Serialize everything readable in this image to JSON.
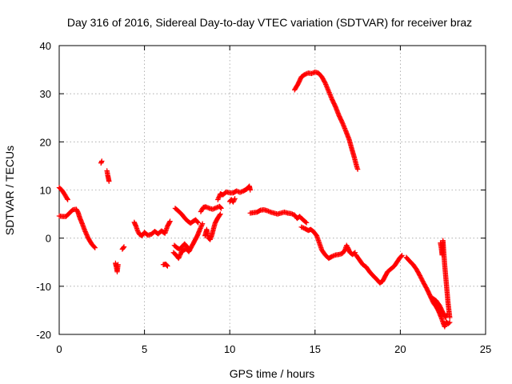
{
  "chart_data": {
    "type": "scatter",
    "title": "Day 316 of 2016, Sidereal Day-to-day VTEC variation (SDTVAR) for receiver braz",
    "xlabel": "GPS time / hours",
    "ylabel": "SDTVAR / TECUs",
    "xlim": [
      0,
      25
    ],
    "ylim": [
      -20,
      40
    ],
    "xticks": [
      0,
      5,
      10,
      15,
      20,
      25
    ],
    "yticks": [
      -20,
      -10,
      0,
      10,
      20,
      30,
      40
    ],
    "xtick_labels": [
      "0",
      "5",
      "10",
      "15",
      "20",
      "25"
    ],
    "ytick_labels": [
      "-20",
      "-10",
      "0",
      "10",
      "20",
      "30",
      "40"
    ],
    "grid": true,
    "marker": "+",
    "color": "#ff0000",
    "series": [
      {
        "name": "s1",
        "points": [
          [
            0.0,
            10.5
          ],
          [
            0.15,
            10.0
          ],
          [
            0.3,
            9.2
          ],
          [
            0.45,
            8.3
          ],
          [
            0.5,
            8.0
          ]
        ]
      },
      {
        "name": "s2",
        "points": [
          [
            0.0,
            4.6
          ],
          [
            0.2,
            4.5
          ],
          [
            0.4,
            4.5
          ],
          [
            0.6,
            5.2
          ],
          [
            0.8,
            5.9
          ],
          [
            1.0,
            6.0
          ],
          [
            1.1,
            5.4
          ],
          [
            1.2,
            4.3
          ],
          [
            1.35,
            3.0
          ],
          [
            1.5,
            1.6
          ],
          [
            1.7,
            0.0
          ],
          [
            1.9,
            -1.2
          ],
          [
            2.1,
            -2.0
          ]
        ]
      },
      {
        "name": "s3",
        "points": [
          [
            2.45,
            15.6
          ],
          [
            2.5,
            16.0
          ]
        ]
      },
      {
        "name": "s4",
        "points": [
          [
            2.8,
            14.0
          ],
          [
            2.85,
            13.0
          ],
          [
            2.9,
            12.2
          ],
          [
            2.92,
            11.8
          ]
        ]
      },
      {
        "name": "s5",
        "points": [
          [
            3.3,
            -5.2
          ],
          [
            3.35,
            -6.0
          ],
          [
            3.4,
            -7.0
          ],
          [
            3.45,
            -5.5
          ]
        ]
      },
      {
        "name": "s6",
        "points": [
          [
            3.7,
            -2.3
          ],
          [
            3.8,
            -1.8
          ]
        ]
      },
      {
        "name": "s7",
        "points": [
          [
            4.4,
            3.3
          ],
          [
            4.5,
            2.5
          ],
          [
            4.6,
            1.5
          ],
          [
            4.7,
            0.8
          ],
          [
            4.85,
            0.5
          ],
          [
            5.0,
            1.2
          ],
          [
            5.2,
            0.6
          ],
          [
            5.4,
            0.8
          ],
          [
            5.6,
            1.4
          ],
          [
            5.8,
            0.9
          ],
          [
            6.0,
            1.5
          ],
          [
            6.2,
            1.0
          ],
          [
            6.35,
            2.5
          ],
          [
            6.5,
            3.5
          ]
        ]
      },
      {
        "name": "s8",
        "points": [
          [
            6.1,
            -5.5
          ],
          [
            6.25,
            -5.4
          ],
          [
            6.35,
            -5.8
          ]
        ]
      },
      {
        "name": "s9",
        "points": [
          [
            6.7,
            -3.0
          ],
          [
            6.85,
            -3.5
          ],
          [
            7.0,
            -4.2
          ],
          [
            7.15,
            -3.0
          ],
          [
            7.3,
            -2.5
          ],
          [
            7.45,
            -2.2
          ],
          [
            7.6,
            -2.8
          ],
          [
            7.8,
            -1.5
          ],
          [
            7.95,
            -0.5
          ],
          [
            8.1,
            0.5
          ],
          [
            8.25,
            1.8
          ],
          [
            8.4,
            3.0
          ]
        ]
      },
      {
        "name": "s10",
        "points": [
          [
            6.75,
            -1.5
          ],
          [
            6.9,
            -2.0
          ],
          [
            7.05,
            -2.3
          ],
          [
            7.2,
            -1.8
          ],
          [
            7.35,
            -1.2
          ],
          [
            7.5,
            -1.8
          ],
          [
            7.65,
            -2.5
          ]
        ]
      },
      {
        "name": "s11",
        "points": [
          [
            6.8,
            6.2
          ],
          [
            7.0,
            5.6
          ],
          [
            7.2,
            4.9
          ],
          [
            7.4,
            4.0
          ],
          [
            7.55,
            3.5
          ],
          [
            7.7,
            3.1
          ],
          [
            7.85,
            3.5
          ],
          [
            8.0,
            3.8
          ],
          [
            8.15,
            3.2
          ]
        ]
      },
      {
        "name": "s12",
        "points": [
          [
            8.3,
            5.5
          ],
          [
            8.45,
            6.4
          ],
          [
            8.6,
            6.5
          ],
          [
            8.8,
            6.2
          ],
          [
            9.0,
            6.0
          ],
          [
            9.2,
            6.3
          ],
          [
            9.4,
            6.6
          ],
          [
            9.5,
            6.2
          ]
        ]
      },
      {
        "name": "s13",
        "points": [
          [
            8.55,
            0.5
          ],
          [
            8.65,
            1.8
          ],
          [
            8.75,
            0.0
          ],
          [
            8.85,
            -0.3
          ],
          [
            8.95,
            0.6
          ],
          [
            9.05,
            2.0
          ],
          [
            9.15,
            3.2
          ],
          [
            9.3,
            4.2
          ],
          [
            9.45,
            5.0
          ]
        ]
      },
      {
        "name": "s14",
        "points": [
          [
            9.3,
            8.0
          ],
          [
            9.45,
            9.2
          ],
          [
            9.6,
            9.0
          ],
          [
            9.8,
            9.6
          ],
          [
            10.0,
            9.4
          ],
          [
            10.2,
            9.4
          ],
          [
            10.4,
            9.8
          ],
          [
            10.6,
            9.5
          ],
          [
            10.8,
            9.8
          ],
          [
            11.0,
            10.2
          ],
          [
            11.15,
            10.8
          ],
          [
            11.2,
            10.0
          ]
        ]
      },
      {
        "name": "s15",
        "points": [
          [
            10.0,
            7.6
          ],
          [
            10.1,
            8.0
          ],
          [
            10.2,
            7.5
          ],
          [
            10.3,
            8.2
          ]
        ]
      },
      {
        "name": "s16",
        "points": [
          [
            11.2,
            5.2
          ],
          [
            11.4,
            5.3
          ],
          [
            11.6,
            5.4
          ],
          [
            11.8,
            5.8
          ],
          [
            12.0,
            5.9
          ],
          [
            12.2,
            5.7
          ],
          [
            12.4,
            5.4
          ],
          [
            12.6,
            5.2
          ],
          [
            12.8,
            5.0
          ],
          [
            13.0,
            5.2
          ],
          [
            13.2,
            5.4
          ],
          [
            13.4,
            5.2
          ],
          [
            13.6,
            5.1
          ],
          [
            13.8,
            4.8
          ],
          [
            13.95,
            4.1
          ],
          [
            14.1,
            4.5
          ],
          [
            14.3,
            3.8
          ],
          [
            14.5,
            3.2
          ]
        ]
      },
      {
        "name": "s17",
        "points": [
          [
            14.2,
            2.3
          ],
          [
            14.4,
            2.0
          ],
          [
            14.6,
            1.6
          ],
          [
            14.75,
            1.8
          ],
          [
            14.9,
            1.4
          ],
          [
            15.1,
            0.5
          ],
          [
            15.25,
            -1.0
          ],
          [
            15.4,
            -2.5
          ],
          [
            15.6,
            -3.5
          ],
          [
            15.8,
            -4.2
          ],
          [
            16.0,
            -3.8
          ],
          [
            16.2,
            -3.5
          ],
          [
            16.4,
            -3.4
          ],
          [
            16.6,
            -3.2
          ],
          [
            16.75,
            -2.5
          ],
          [
            16.85,
            -1.5
          ],
          [
            16.95,
            -2.2
          ],
          [
            17.05,
            -3.0
          ],
          [
            17.2,
            -3.4
          ],
          [
            17.35,
            -3.0
          ]
        ]
      },
      {
        "name": "s18",
        "points": [
          [
            17.4,
            -3.5
          ],
          [
            17.6,
            -4.5
          ],
          [
            17.8,
            -5.5
          ],
          [
            18.0,
            -6.0
          ],
          [
            18.2,
            -7.0
          ],
          [
            18.4,
            -7.8
          ],
          [
            18.6,
            -8.5
          ],
          [
            18.8,
            -9.3
          ],
          [
            18.95,
            -9.0
          ],
          [
            19.1,
            -8.0
          ],
          [
            19.25,
            -7.0
          ],
          [
            19.45,
            -6.4
          ],
          [
            19.65,
            -5.8
          ],
          [
            19.8,
            -5.0
          ],
          [
            19.95,
            -4.2
          ],
          [
            20.1,
            -3.6
          ]
        ]
      },
      {
        "name": "s19",
        "points": [
          [
            20.35,
            -4.0
          ],
          [
            20.55,
            -4.8
          ],
          [
            20.75,
            -5.5
          ],
          [
            20.95,
            -6.5
          ],
          [
            21.15,
            -7.8
          ],
          [
            21.35,
            -9.2
          ],
          [
            21.55,
            -10.5
          ],
          [
            21.75,
            -12.0
          ],
          [
            21.95,
            -13.5
          ],
          [
            22.1,
            -14.2
          ],
          [
            22.25,
            -15.2
          ],
          [
            22.4,
            -16.5
          ],
          [
            22.5,
            -17.5
          ],
          [
            22.6,
            -18.4
          ],
          [
            22.7,
            -17.4
          ],
          [
            22.8,
            -17.8
          ],
          [
            22.9,
            -17.5
          ]
        ]
      },
      {
        "name": "s20",
        "points": [
          [
            21.9,
            -12.5
          ],
          [
            22.1,
            -13.0
          ],
          [
            22.3,
            -14.0
          ],
          [
            22.5,
            -15.5
          ],
          [
            22.65,
            -16.5
          ],
          [
            22.75,
            -15.8
          ]
        ]
      },
      {
        "name": "s21",
        "points": [
          [
            22.35,
            -1.0
          ],
          [
            22.4,
            -2.0
          ],
          [
            22.45,
            -3.5
          ],
          [
            22.5,
            -0.5
          ],
          [
            22.55,
            -3.0
          ],
          [
            22.6,
            -5.5
          ],
          [
            22.65,
            -7.5
          ],
          [
            22.7,
            -9.5
          ],
          [
            22.75,
            -11.5
          ],
          [
            22.8,
            -13.5
          ],
          [
            22.85,
            -15.0
          ],
          [
            22.9,
            -16.5
          ]
        ]
      },
      {
        "name": "s22",
        "points": [
          [
            13.8,
            30.8
          ],
          [
            14.0,
            32.0
          ],
          [
            14.2,
            33.5
          ],
          [
            14.4,
            34.0
          ],
          [
            14.6,
            34.3
          ],
          [
            14.8,
            34.2
          ],
          [
            15.0,
            34.5
          ],
          [
            15.2,
            34.3
          ],
          [
            15.4,
            33.5
          ],
          [
            15.6,
            32.2
          ],
          [
            15.8,
            30.5
          ],
          [
            16.0,
            28.8
          ],
          [
            16.2,
            27.3
          ],
          [
            16.4,
            25.5
          ],
          [
            16.6,
            24.0
          ],
          [
            16.8,
            22.3
          ],
          [
            17.0,
            20.5
          ],
          [
            17.15,
            18.6
          ],
          [
            17.3,
            16.8
          ],
          [
            17.45,
            14.8
          ],
          [
            17.5,
            14.3
          ]
        ]
      }
    ]
  }
}
